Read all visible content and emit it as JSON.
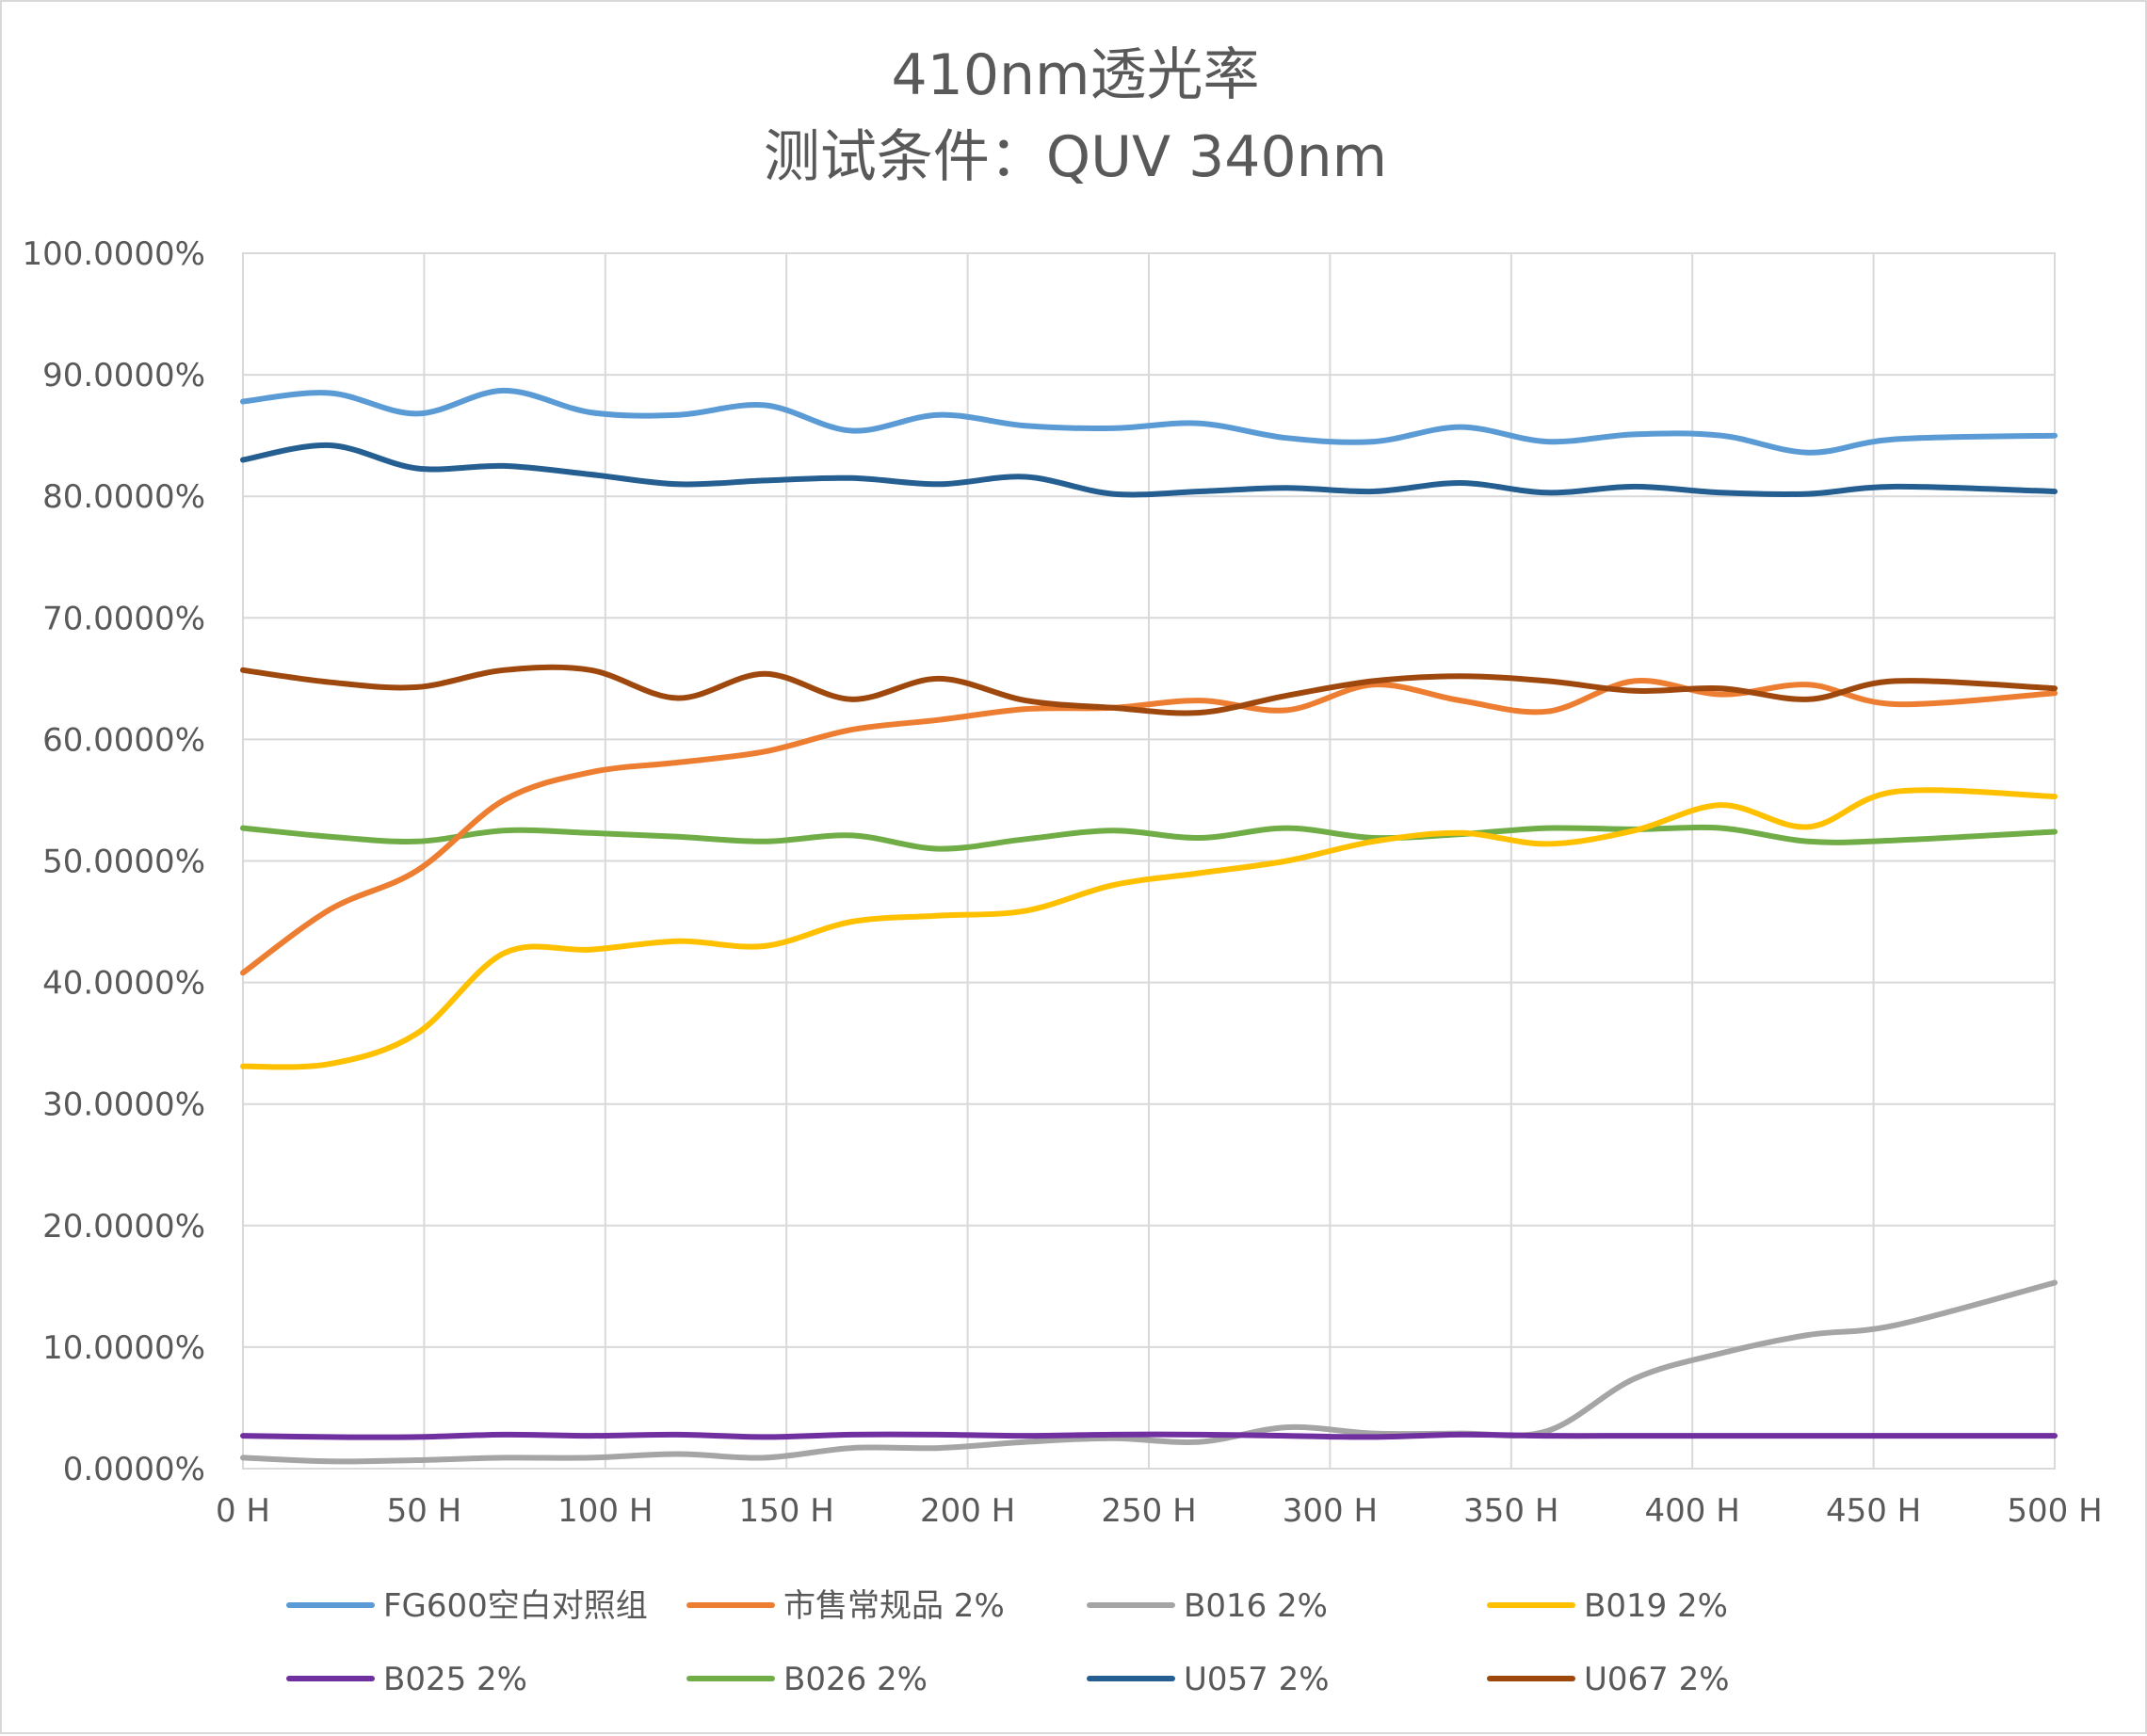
{
  "chart_data": {
    "type": "line",
    "title": "410nm透光率",
    "subtitle": "测试条件：QUV 340nm",
    "xlabel": "",
    "ylabel": "",
    "ylim": [
      0,
      100
    ],
    "y_ticks": [
      0,
      10,
      20,
      30,
      40,
      50,
      60,
      70,
      80,
      90,
      100
    ],
    "y_tick_labels": [
      "0.0000%",
      "10.0000%",
      "20.0000%",
      "30.0000%",
      "40.0000%",
      "50.0000%",
      "60.0000%",
      "70.0000%",
      "80.0000%",
      "90.0000%",
      "100.0000%"
    ],
    "categories": [
      "0 H",
      "50 H",
      "100 H",
      "150 H",
      "200 H",
      "250 H",
      "300 H",
      "350 H",
      "400 H",
      "450 H",
      "500 H"
    ],
    "x": [
      0,
      24,
      48,
      72,
      96,
      120,
      144,
      168,
      192,
      216,
      240,
      264,
      288,
      312,
      336,
      360,
      384,
      408,
      432,
      456,
      500
    ],
    "grid": true,
    "legend_position": "bottom",
    "series": [
      {
        "name": "FG600空白对照组",
        "color": "#5B9BD5",
        "values": [
          87.8,
          88.5,
          86.8,
          88.7,
          86.9,
          86.7,
          87.5,
          85.4,
          86.7,
          85.8,
          85.6,
          86.0,
          84.8,
          84.5,
          85.7,
          84.5,
          85.1,
          85.0,
          83.6,
          84.7,
          85.0
        ]
      },
      {
        "name": "市售常规品 2%",
        "color": "#ED7D31",
        "values": [
          40.8,
          46.0,
          49.2,
          55.0,
          57.3,
          58.1,
          59.0,
          60.8,
          61.6,
          62.5,
          62.6,
          63.2,
          62.4,
          64.5,
          63.2,
          62.3,
          64.8,
          63.7,
          64.5,
          62.9,
          63.8
        ]
      },
      {
        "name": "B016 2%",
        "color": "#A5A5A5",
        "values": [
          0.9,
          0.6,
          0.7,
          0.9,
          0.9,
          1.2,
          0.9,
          1.7,
          1.7,
          2.2,
          2.5,
          2.2,
          3.4,
          2.9,
          2.9,
          3.1,
          7.4,
          9.5,
          11.0,
          11.8,
          15.3
        ]
      },
      {
        "name": "B019 2%",
        "color": "#FFC000",
        "values": [
          33.1,
          33.3,
          35.8,
          42.4,
          42.7,
          43.4,
          43.0,
          45.0,
          45.5,
          45.9,
          48.0,
          49.0,
          50.0,
          51.6,
          52.3,
          51.4,
          52.5,
          54.6,
          52.8,
          55.7,
          55.3
        ]
      },
      {
        "name": "B025 2%",
        "color": "#7030A0",
        "values": [
          2.7,
          2.6,
          2.6,
          2.8,
          2.7,
          2.8,
          2.6,
          2.8,
          2.8,
          2.7,
          2.8,
          2.8,
          2.7,
          2.6,
          2.8,
          2.7,
          2.7,
          2.7,
          2.7,
          2.7,
          2.7
        ]
      },
      {
        "name": "B026 2%",
        "color": "#70AD47",
        "values": [
          52.7,
          52.0,
          51.6,
          52.5,
          52.3,
          52.0,
          51.6,
          52.1,
          51.0,
          51.8,
          52.5,
          51.9,
          52.7,
          51.9,
          52.2,
          52.7,
          52.6,
          52.7,
          51.6,
          51.7,
          52.4
        ]
      },
      {
        "name": "U057 2%",
        "color": "#255E91",
        "values": [
          83.0,
          84.2,
          82.3,
          82.5,
          81.8,
          81.0,
          81.3,
          81.5,
          81.0,
          81.6,
          80.2,
          80.4,
          80.7,
          80.4,
          81.1,
          80.3,
          80.8,
          80.3,
          80.2,
          80.8,
          80.4
        ]
      },
      {
        "name": "U067 2%",
        "color": "#9E480E",
        "values": [
          65.7,
          64.7,
          64.3,
          65.7,
          65.7,
          63.4,
          65.4,
          63.3,
          65.0,
          63.2,
          62.6,
          62.2,
          63.6,
          64.8,
          65.2,
          64.8,
          64.0,
          64.2,
          63.3,
          64.8,
          64.2
        ]
      }
    ]
  }
}
